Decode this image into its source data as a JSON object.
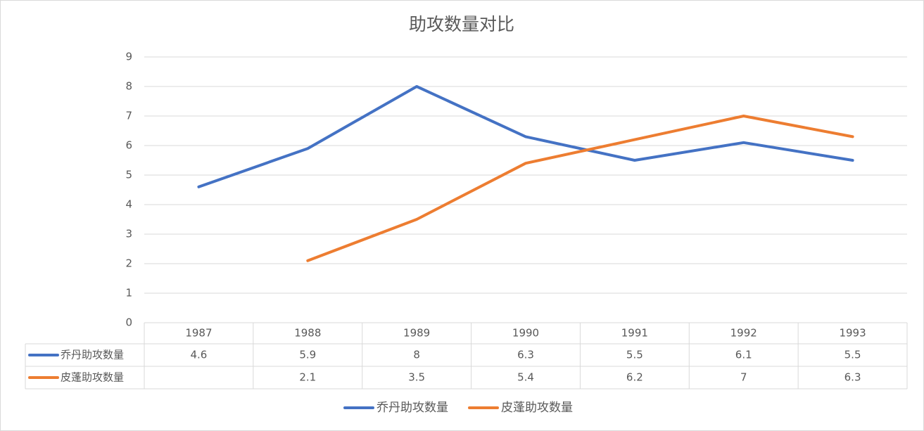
{
  "chart_data": {
    "type": "line",
    "title": "助攻数量对比",
    "categories": [
      "1987",
      "1988",
      "1989",
      "1990",
      "1991",
      "1992",
      "1993"
    ],
    "series": [
      {
        "name": "乔丹助攻数量",
        "color": "#4472c4",
        "values": [
          4.6,
          5.9,
          8,
          6.3,
          5.5,
          6.1,
          5.5
        ]
      },
      {
        "name": "皮蓬助攻数量",
        "color": "#ed7d31",
        "values": [
          null,
          2.1,
          3.5,
          5.4,
          6.2,
          7,
          6.3
        ]
      }
    ],
    "ylim": [
      0,
      9
    ],
    "yticks": [
      0,
      1,
      2,
      3,
      4,
      5,
      6,
      7,
      8,
      9
    ],
    "grid": true,
    "legend": "bottom",
    "data_table": true
  }
}
